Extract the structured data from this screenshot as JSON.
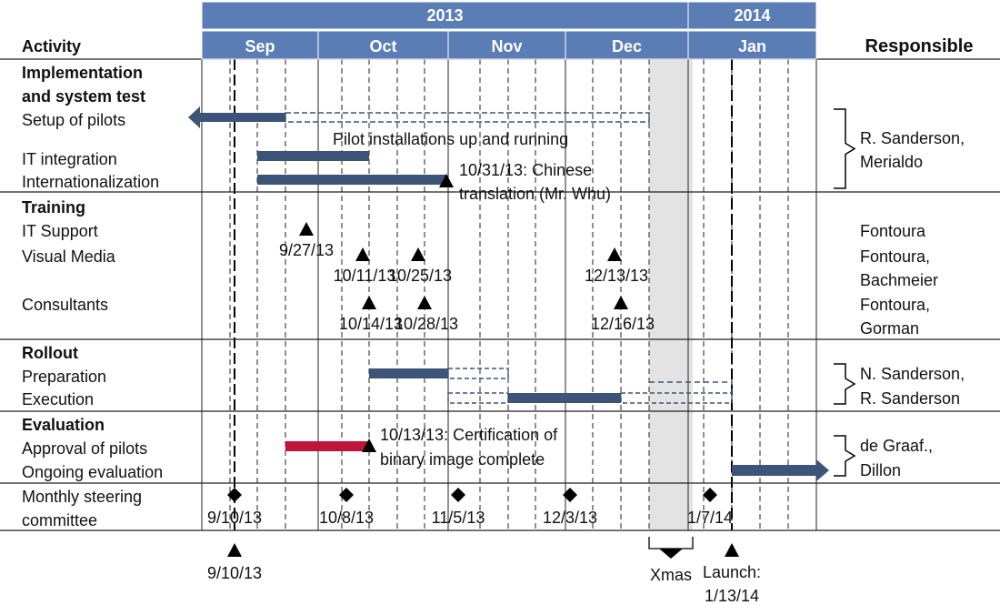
{
  "header": {
    "activity": "Activity",
    "responsible": "Responsible",
    "years": [
      {
        "label": "2013",
        "start_month": 0,
        "end_month": 4
      },
      {
        "label": "2014",
        "start_month": 4,
        "end_month": 5
      }
    ],
    "months": [
      "Sep",
      "Oct",
      "Nov",
      "Dec",
      "Jan"
    ]
  },
  "sections": [
    {
      "title": "Implementation and system test",
      "activities": [
        "Setup of pilots",
        "IT integration",
        "Internationalization"
      ],
      "responsible": "R. Sanderson, Merialdo"
    },
    {
      "title": "Training",
      "activities": [
        "IT Support",
        "Visual Media",
        "Consultants"
      ],
      "responsible_lines": [
        "Fontoura",
        "Fontoura, Bachmeier",
        "Fontoura, Gorman"
      ]
    },
    {
      "title": "Rollout",
      "activities": [
        "Preparation",
        "Execution"
      ],
      "responsible": "N. Sanderson, R. Sanderson"
    },
    {
      "title": "Evaluation",
      "activities": [
        "Approval of pilots",
        "Ongoing evaluation"
      ],
      "responsible": "de Graaf., Dillon"
    },
    {
      "title": "",
      "activities": [
        "Monthly steering committee"
      ],
      "responsible": ""
    }
  ],
  "annotations": {
    "pilot_installations": "Pilot installations up and running",
    "chinese_translation": "10/31/13: Chinese translation (Mr. Whu)",
    "certification": "10/13/13: Certification of binary image complete"
  },
  "milestones": {
    "it_support": [
      "9/27/13"
    ],
    "visual_media": [
      "10/11/13",
      "10/25/13",
      "12/13/13"
    ],
    "consultants": [
      "10/14/13",
      "10/28/13",
      "12/16/13"
    ],
    "steering_committee": [
      "9/10/13",
      "10/8/13",
      "11/5/13",
      "12/3/13",
      "1/7/14"
    ],
    "start": "9/10/13",
    "xmas": "Xmas",
    "launch": "Launch: 1/13/14"
  },
  "colors": {
    "header_fill": "#5b7db5",
    "header_text": "#ffffff",
    "bar": "#3b5478",
    "approval_bar": "#c0143c",
    "xmas_band": "#e3e3e3"
  }
}
